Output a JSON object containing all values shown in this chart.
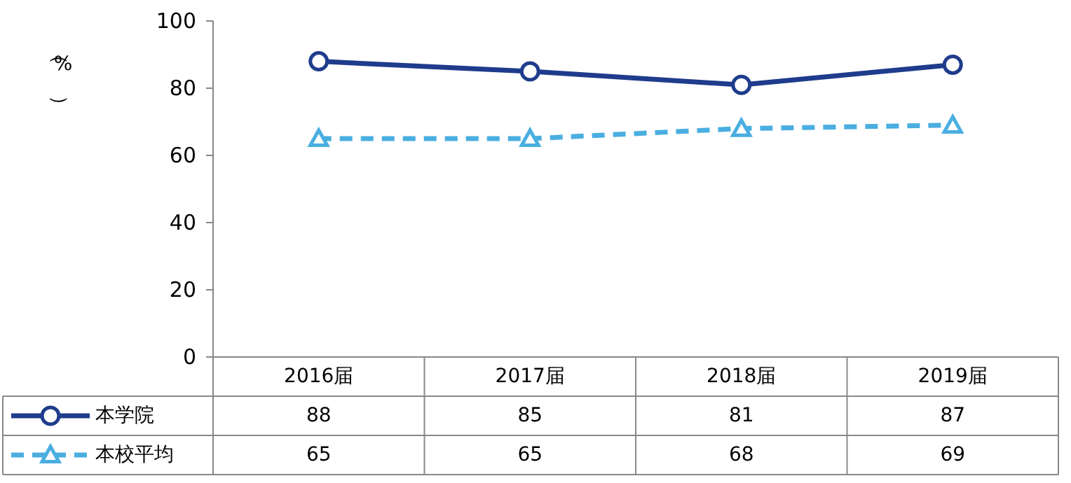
{
  "chart_data": {
    "type": "line",
    "categories": [
      "2016届",
      "2017届",
      "2018届",
      "2019届"
    ],
    "series": [
      {
        "name": "本学院",
        "color": "#1f3c8c",
        "values": [
          88,
          85,
          81,
          87
        ],
        "marker": "circle",
        "line_style": "solid"
      },
      {
        "name": "本校平均",
        "color": "#4aaee0",
        "values": [
          65,
          65,
          68,
          69
        ],
        "marker": "triangle",
        "line_style": "dashed"
      }
    ],
    "ylabel": "（%）",
    "ylim": [
      0,
      100
    ],
    "yticks": [
      0,
      20,
      40,
      60,
      80,
      100
    ],
    "data_labels": true,
    "legend": "bottom left",
    "grid": false
  }
}
